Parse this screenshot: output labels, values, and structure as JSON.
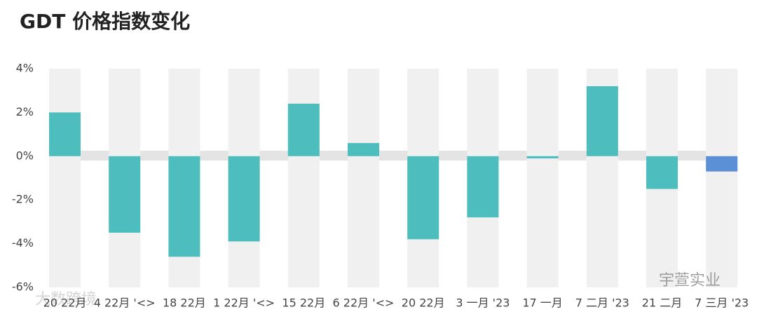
{
  "chart_data": {
    "type": "bar",
    "title": "GDT 价格指数变化",
    "categories": [
      "20 22月",
      "4 22月 '<>",
      "18 22月",
      "1 22月 '<>",
      "15 22月",
      "6 22月 '<>",
      "20 22月",
      "3 一月 '23",
      "17 一月",
      "7 二月 '23",
      "21 二月",
      "7 三月 '23"
    ],
    "values": [
      2.0,
      -3.5,
      -4.6,
      -3.9,
      2.4,
      0.6,
      -3.8,
      -2.8,
      -0.1,
      3.2,
      -1.5,
      -0.7
    ],
    "colors": [
      "#4dbdbd",
      "#4dbdbd",
      "#4dbdbd",
      "#4dbdbd",
      "#4dbdbd",
      "#4dbdbd",
      "#4dbdbd",
      "#4dbdbd",
      "#4dbdbd",
      "#4dbdbd",
      "#4dbdbd",
      "#5b8fd6"
    ],
    "ylim": [
      -6,
      4
    ],
    "yticks": [
      {
        "value": 4,
        "label": "4%"
      },
      {
        "value": 2,
        "label": "2%"
      },
      {
        "value": 0,
        "label": "0%"
      },
      {
        "value": -2,
        "label": "-2%"
      },
      {
        "value": -4,
        "label": "-4%"
      },
      {
        "value": -6,
        "label": "-6%"
      }
    ],
    "watermarks": [
      "宇萱实业",
      "大数跨境"
    ]
  }
}
